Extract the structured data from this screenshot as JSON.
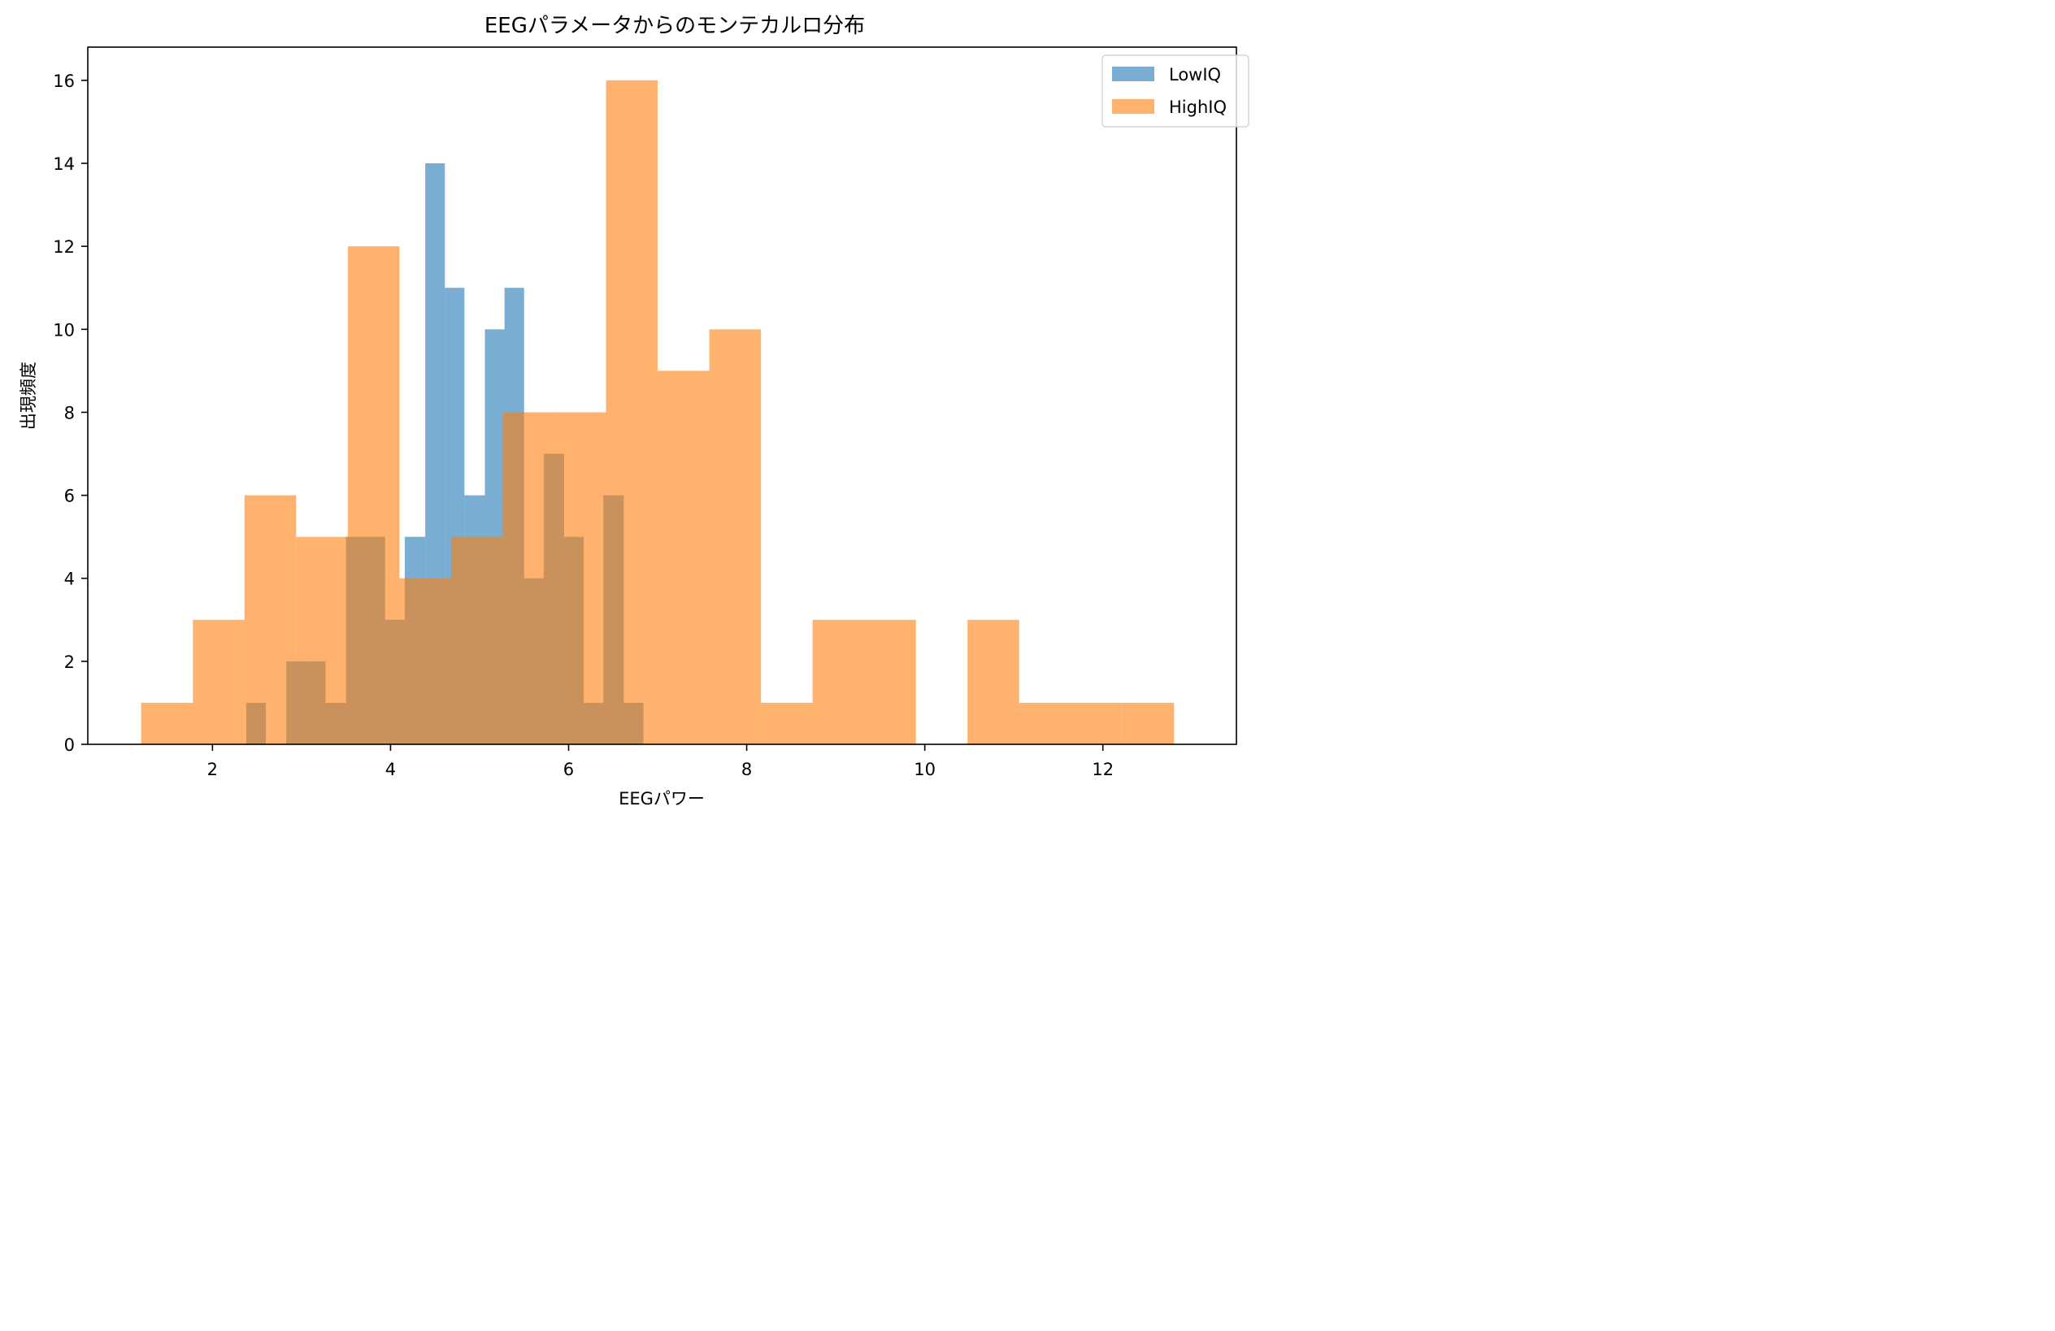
{
  "chart_data": {
    "type": "histogram",
    "title": "EEGパラメータからのモンテカルロ分布",
    "xlabel": "EEGパワー",
    "ylabel": "出現頻度",
    "xlim": [
      0.6,
      13.5
    ],
    "ylim": [
      0,
      16.8
    ],
    "xticks": [
      2,
      4,
      6,
      8,
      10,
      12
    ],
    "yticks": [
      0,
      2,
      4,
      6,
      8,
      10,
      12,
      14,
      16
    ],
    "grid": false,
    "legend_position": "top-right",
    "series": [
      {
        "name": "LowIQ",
        "color": "#1f77b4",
        "opacity": 0.6,
        "bin_edges": [
          2.38,
          2.6,
          2.83,
          3.05,
          3.27,
          3.5,
          3.72,
          3.94,
          4.16,
          4.39,
          4.61,
          4.83,
          5.06,
          5.28,
          5.5,
          5.72,
          5.95,
          6.17,
          6.39,
          6.62,
          6.84
        ],
        "counts": [
          1,
          0,
          2,
          2,
          1,
          5,
          5,
          3,
          5,
          14,
          11,
          6,
          10,
          11,
          4,
          7,
          5,
          1,
          6,
          1
        ]
      },
      {
        "name": "HighIQ",
        "color": "#ff7f0e",
        "opacity": 0.6,
        "bin_edges": [
          1.2,
          1.78,
          2.36,
          2.94,
          3.52,
          4.1,
          4.68,
          5.26,
          5.84,
          6.42,
          7.0,
          7.58,
          8.16,
          8.74,
          9.32,
          9.9,
          10.48,
          11.06,
          11.64,
          12.22,
          12.8
        ],
        "counts": [
          1,
          3,
          6,
          5,
          12,
          4,
          5,
          8,
          8,
          16,
          9,
          10,
          1,
          3,
          3,
          0,
          3,
          1,
          1,
          1
        ]
      }
    ]
  }
}
